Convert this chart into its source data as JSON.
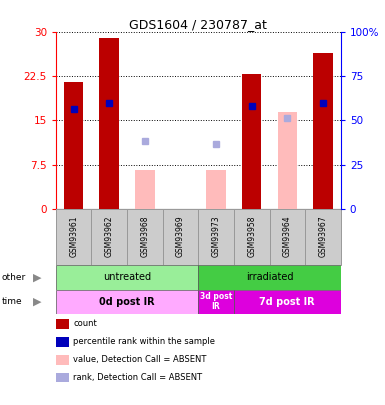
{
  "title": "GDS1604 / 230787_at",
  "samples": [
    "GSM93961",
    "GSM93962",
    "GSM93968",
    "GSM93969",
    "GSM93973",
    "GSM93958",
    "GSM93964",
    "GSM93967"
  ],
  "count_values": [
    21.5,
    29.0,
    null,
    null,
    null,
    23.0,
    null,
    26.5
  ],
  "count_absent_values": [
    null,
    null,
    6.5,
    null,
    6.5,
    null,
    16.5,
    null
  ],
  "rank_values": [
    17.0,
    18.0,
    null,
    null,
    null,
    17.5,
    null,
    18.0
  ],
  "rank_absent_values": [
    null,
    null,
    null,
    null,
    null,
    null,
    15.5,
    null
  ],
  "rank_small_absent": [
    null,
    null,
    11.5,
    null,
    11.0,
    null,
    null,
    null
  ],
  "ylim": [
    0,
    30
  ],
  "yticks": [
    0,
    7.5,
    15,
    22.5,
    30
  ],
  "y2ticks": [
    0,
    25,
    50,
    75,
    100
  ],
  "bar_width": 0.55,
  "count_color": "#bb0000",
  "rank_color": "#0000bb",
  "absent_count_color": "#ffbbbb",
  "absent_rank_color": "#aaaadd",
  "groups": [
    {
      "label": "untreated",
      "start": 0,
      "end": 4,
      "color": "#99ee99"
    },
    {
      "label": "irradiated",
      "start": 4,
      "end": 8,
      "color": "#44cc44"
    }
  ],
  "times": [
    {
      "label": "0d post IR",
      "start": 0,
      "end": 4,
      "color": "#ffaaff"
    },
    {
      "label": "3d post\nIR",
      "start": 4,
      "end": 5,
      "color": "#dd00dd"
    },
    {
      "label": "7d post IR",
      "start": 5,
      "end": 8,
      "color": "#dd00dd"
    }
  ],
  "legend_items": [
    {
      "label": "count",
      "color": "#bb0000"
    },
    {
      "label": "percentile rank within the sample",
      "color": "#0000bb"
    },
    {
      "label": "value, Detection Call = ABSENT",
      "color": "#ffbbbb"
    },
    {
      "label": "rank, Detection Call = ABSENT",
      "color": "#aaaadd"
    }
  ],
  "bg_color": "#cccccc",
  "plot_bg": "#ffffff"
}
